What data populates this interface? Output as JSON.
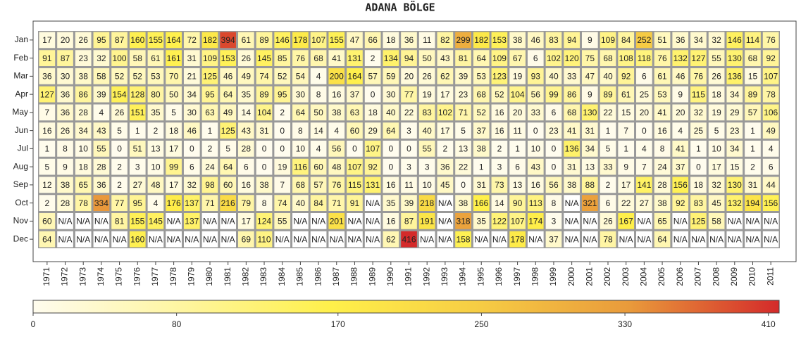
{
  "chart_data": {
    "type": "heatmap",
    "title": "ADANA BÖLGE",
    "x": [
      "1971",
      "1972",
      "1973",
      "1974",
      "1975",
      "1976",
      "1977",
      "1978",
      "1979",
      "1980",
      "1981",
      "1982",
      "1983",
      "1984",
      "1985",
      "1986",
      "1987",
      "1988",
      "1989",
      "1990",
      "1991",
      "1992",
      "1993",
      "1994",
      "1995",
      "1996",
      "1997",
      "1998",
      "1999",
      "2000",
      "2001",
      "2002",
      "2003",
      "2004",
      "2005",
      "2006",
      "2007",
      "2008",
      "2009",
      "2010",
      "2011"
    ],
    "categories": [
      "Jan",
      "Feb",
      "Mar",
      "Apr",
      "May",
      "Jun",
      "Jul",
      "Aug",
      "Sep",
      "Oct",
      "Nov",
      "Dec"
    ],
    "values": [
      [
        17,
        20,
        26,
        95,
        87,
        160,
        155,
        164,
        72,
        182,
        394,
        61,
        89,
        146,
        178,
        107,
        155,
        47,
        66,
        18,
        36,
        11,
        82,
        299,
        182,
        153,
        38,
        46,
        83,
        94,
        9,
        109,
        84,
        252,
        51,
        36,
        34,
        32,
        146,
        114,
        76
      ],
      [
        91,
        87,
        23,
        32,
        100,
        58,
        61,
        161,
        31,
        109,
        153,
        26,
        145,
        85,
        76,
        68,
        41,
        131,
        2,
        134,
        94,
        50,
        43,
        81,
        64,
        109,
        67,
        6,
        102,
        120,
        75,
        68,
        108,
        118,
        76,
        132,
        127,
        55,
        130,
        68,
        92
      ],
      [
        36,
        30,
        38,
        58,
        52,
        52,
        53,
        70,
        21,
        125,
        46,
        49,
        74,
        52,
        54,
        4,
        200,
        164,
        57,
        59,
        20,
        26,
        62,
        39,
        53,
        123,
        19,
        93,
        40,
        33,
        47,
        40,
        92,
        6,
        61,
        46,
        76,
        26,
        136,
        15,
        107
      ],
      [
        127,
        36,
        86,
        39,
        154,
        128,
        80,
        50,
        34,
        95,
        64,
        35,
        89,
        95,
        30,
        8,
        16,
        37,
        0,
        30,
        77,
        19,
        17,
        23,
        68,
        52,
        104,
        56,
        99,
        86,
        9,
        89,
        61,
        25,
        53,
        9,
        115,
        18,
        34,
        89,
        78
      ],
      [
        7,
        36,
        28,
        4,
        26,
        151,
        35,
        5,
        30,
        63,
        49,
        14,
        104,
        2,
        64,
        50,
        38,
        63,
        18,
        40,
        22,
        83,
        102,
        71,
        52,
        16,
        20,
        33,
        6,
        68,
        130,
        22,
        15,
        20,
        41,
        20,
        32,
        19,
        29,
        57,
        106
      ],
      [
        16,
        26,
        34,
        43,
        5,
        1,
        2,
        18,
        46,
        1,
        125,
        43,
        31,
        0,
        8,
        14,
        4,
        60,
        29,
        64,
        3,
        40,
        17,
        5,
        37,
        16,
        11,
        0,
        23,
        41,
        31,
        1,
        7,
        0,
        16,
        4,
        25,
        5,
        23,
        1,
        49
      ],
      [
        1,
        8,
        10,
        55,
        0,
        51,
        13,
        17,
        0,
        2,
        5,
        28,
        0,
        0,
        10,
        4,
        56,
        0,
        107,
        0,
        0,
        55,
        2,
        13,
        38,
        2,
        1,
        10,
        0,
        136,
        34,
        5,
        1,
        4,
        8,
        41,
        1,
        10,
        34,
        1,
        4
      ],
      [
        5,
        9,
        18,
        28,
        2,
        3,
        10,
        99,
        6,
        24,
        64,
        6,
        0,
        19,
        116,
        60,
        48,
        107,
        92,
        0,
        3,
        3,
        36,
        22,
        1,
        3,
        6,
        43,
        0,
        31,
        13,
        33,
        9,
        7,
        24,
        37,
        0,
        17,
        15,
        2,
        6
      ],
      [
        12,
        38,
        65,
        36,
        2,
        27,
        48,
        17,
        32,
        98,
        60,
        16,
        38,
        7,
        68,
        57,
        76,
        115,
        131,
        16,
        11,
        10,
        45,
        0,
        31,
        73,
        13,
        16,
        56,
        38,
        88,
        2,
        17,
        141,
        28,
        156,
        18,
        32,
        130,
        31,
        44
      ],
      [
        2,
        28,
        78,
        334,
        77,
        95,
        4,
        176,
        137,
        71,
        216,
        79,
        8,
        74,
        40,
        84,
        71,
        91,
        null,
        35,
        39,
        218,
        null,
        38,
        166,
        14,
        90,
        113,
        8,
        null,
        321,
        6,
        22,
        27,
        38,
        92,
        83,
        45,
        132,
        194,
        156
      ],
      [
        60,
        null,
        null,
        null,
        81,
        155,
        145,
        null,
        137,
        null,
        null,
        17,
        124,
        55,
        null,
        null,
        201,
        null,
        null,
        16,
        87,
        191,
        null,
        318,
        35,
        122,
        107,
        174,
        3,
        null,
        null,
        26,
        167,
        null,
        65,
        null,
        125,
        58,
        null,
        null,
        null
      ],
      [
        64,
        null,
        null,
        null,
        null,
        160,
        null,
        null,
        null,
        null,
        null,
        69,
        110,
        null,
        null,
        null,
        null,
        null,
        null,
        62,
        416,
        null,
        null,
        158,
        null,
        null,
        178,
        null,
        37,
        null,
        null,
        78,
        null,
        null,
        64,
        null,
        null,
        null,
        null,
        null,
        null
      ]
    ],
    "missing_label": "N/A",
    "clim": [
      0,
      416
    ],
    "cticks": [
      0,
      80,
      170,
      250,
      330,
      410
    ],
    "colormap": [
      "#fffcee",
      "#fff5a0",
      "#fff04a",
      "#f6cc44",
      "#e99a3b",
      "#d42a2a"
    ]
  }
}
